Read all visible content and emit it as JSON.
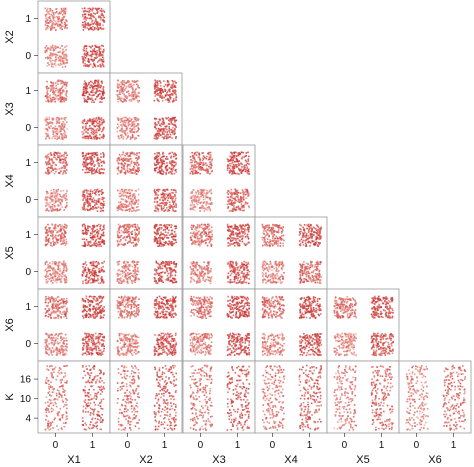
{
  "chart_data": {
    "type": "scatter",
    "subtype": "pairs-plot-lower-triangle",
    "jittered": true,
    "variables": [
      "X1",
      "X2",
      "X3",
      "X4",
      "X5",
      "X6",
      "K"
    ],
    "binary_tick_labels": [
      "0",
      "1"
    ],
    "k_tick_labels": [
      "4",
      "10",
      "16"
    ],
    "k_range": [
      1,
      20
    ],
    "point_color_light": "#f4b9ae",
    "point_color_dark": "#c62828",
    "panel_border_color": "#9a9a9a",
    "cell_densities": {
      "X2_vs_X1": [
        [
          0.35,
          0.75
        ],
        [
          0.45,
          0.75
        ]
      ],
      "X3_vs_X1": [
        [
          0.35,
          0.7
        ],
        [
          0.5,
          0.8
        ]
      ],
      "X3_vs_X2": [
        [
          0.4,
          0.7
        ],
        [
          0.45,
          0.75
        ]
      ],
      "X4_vs_X1": [
        [
          0.35,
          0.7
        ],
        [
          0.6,
          0.8
        ]
      ],
      "X4_vs_X2": [
        [
          0.35,
          0.7
        ],
        [
          0.55,
          0.75
        ]
      ],
      "X4_vs_X3": [
        [
          0.3,
          0.6
        ],
        [
          0.6,
          0.75
        ]
      ],
      "X5_vs_X1": [
        [
          0.4,
          0.75
        ],
        [
          0.55,
          0.8
        ]
      ],
      "X5_vs_X2": [
        [
          0.4,
          0.75
        ],
        [
          0.55,
          0.8
        ]
      ],
      "X5_vs_X3": [
        [
          0.4,
          0.7
        ],
        [
          0.55,
          0.75
        ]
      ],
      "X5_vs_X4": [
        [
          0.35,
          0.6
        ],
        [
          0.55,
          0.75
        ]
      ],
      "X6_vs_X1": [
        [
          0.4,
          0.75
        ],
        [
          0.55,
          0.8
        ]
      ],
      "X6_vs_X2": [
        [
          0.4,
          0.75
        ],
        [
          0.55,
          0.8
        ]
      ],
      "X6_vs_X3": [
        [
          0.4,
          0.75
        ],
        [
          0.5,
          0.8
        ]
      ],
      "X6_vs_X4": [
        [
          0.35,
          0.75
        ],
        [
          0.5,
          0.8
        ]
      ],
      "X6_vs_X5": [
        [
          0.3,
          0.7
        ],
        [
          0.5,
          0.75
        ]
      ],
      "K_vs_X1": [
        [
          0.5,
          0.85
        ]
      ],
      "K_vs_X2": [
        [
          0.5,
          0.8
        ]
      ],
      "K_vs_X3": [
        [
          0.5,
          0.8
        ]
      ],
      "K_vs_X4": [
        [
          0.45,
          0.75
        ]
      ],
      "K_vs_X5": [
        [
          0.4,
          0.75
        ]
      ],
      "K_vs_X6": [
        [
          0.35,
          0.65
        ]
      ]
    }
  }
}
